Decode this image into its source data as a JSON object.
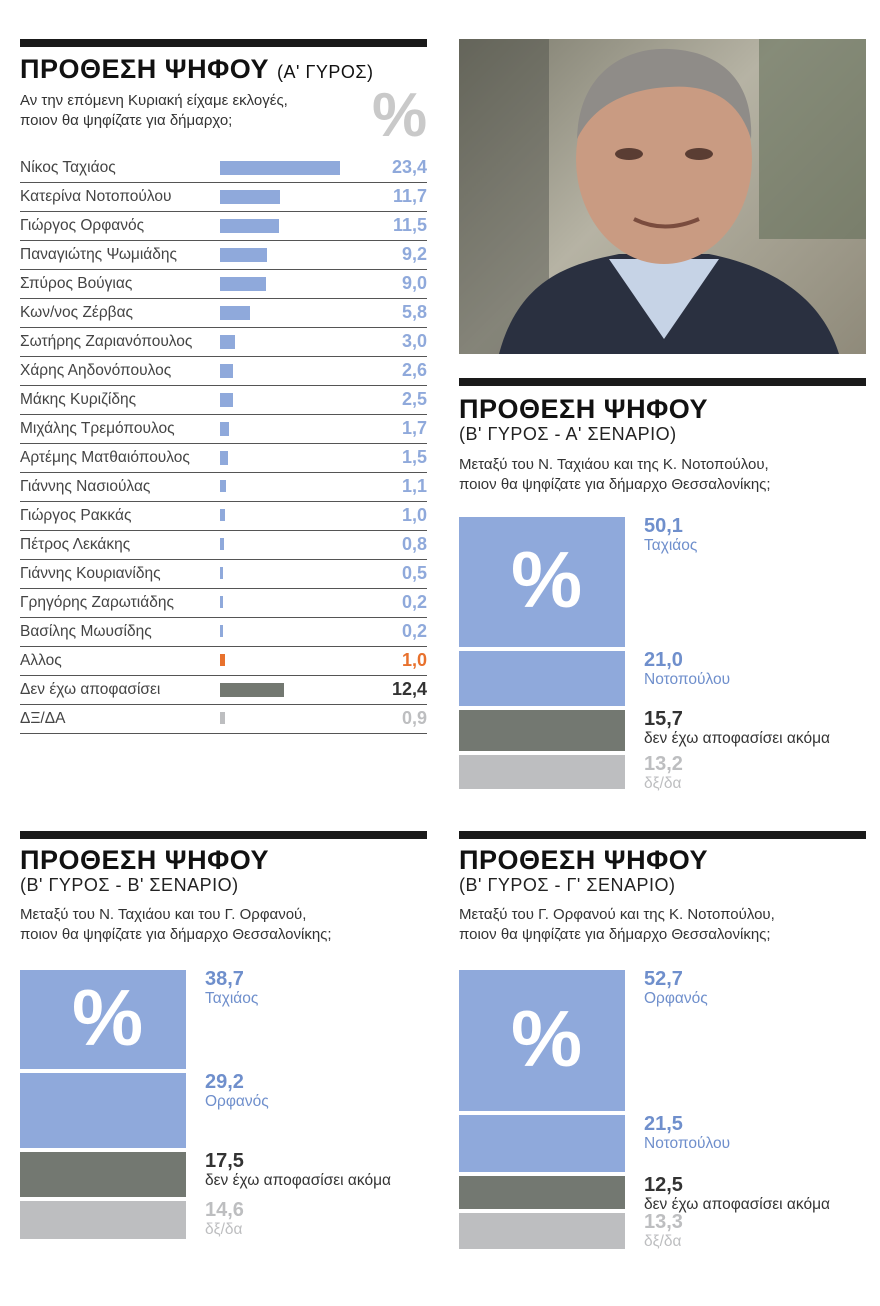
{
  "colors": {
    "blue": "#8fa9db",
    "orange": "#e8712d",
    "darkgray": "#737871",
    "lightgray": "#bdbec0"
  },
  "panel1": {
    "title": "ΠΡΟΘΕΣΗ ΨΗΦΟΥ",
    "subtitle": "(Α' ΓΥΡΟΣ)",
    "question_line1": "Αν την επόμενη Κυριακή είχαμε εκλογές,",
    "question_line2": "ποιον θα ψηφίζατε για δήμαρχο;",
    "percent_symbol": "%"
  },
  "photo": {
    "icon": "portrait-photo"
  },
  "panel2": {
    "title": "ΠΡΟΘΕΣΗ ΨΗΦΟΥ",
    "subtitle": "(Β' ΓΥΡΟΣ - Α' ΣΕΝΑΡΙΟ)",
    "question_line1": "Μεταξύ του Ν. Ταχιάου και της Κ. Νοτοπούλου,",
    "question_line2": "ποιον θα ψηφίζατε για δήμαρχο Θεσσαλονίκης;",
    "percent_symbol": "%"
  },
  "panel3": {
    "title": "ΠΡΟΘΕΣΗ ΨΗΦΟΥ",
    "subtitle": "(Β' ΓΥΡΟΣ - Β' ΣΕΝΑΡΙΟ)",
    "question_line1": "Μεταξύ του Ν. Ταχιάου και του Γ. Ορφανού,",
    "question_line2": "ποιον θα ψηφίζατε για δήμαρχο Θεσσαλονίκης;",
    "percent_symbol": "%"
  },
  "panel4": {
    "title": "ΠΡΟΘΕΣΗ ΨΗΦΟΥ",
    "subtitle": "(Β' ΓΥΡΟΣ - Γ' ΣΕΝΑΡΙΟ)",
    "question_line1": "Μεταξύ του Γ. Ορφανού και της Κ. Νοτοπούλου,",
    "question_line2": "ποιον θα ψηφίζατε για δήμαρχο Θεσσαλονίκης;",
    "percent_symbol": "%"
  },
  "chart_data": [
    {
      "type": "bar",
      "orientation": "horizontal",
      "title": "ΠΡΟΘΕΣΗ ΨΗΦΟΥ (Α' ΓΥΡΟΣ)",
      "unit": "%",
      "categories": [
        "Νίκος Ταχιάος",
        "Κατερίνα Νοτοπούλου",
        "Γιώργος Ορφανός",
        "Παναγιώτης Ψωμιάδης",
        "Σπύρος Βούγιας",
        "Κων/νος Ζέρβας",
        "Σωτήρης Ζαριανόπουλος",
        "Χάρης Αηδονόπουλος",
        "Μάκης Κυριζίδης",
        "Μιχάλης Τρεμόπουλος",
        "Αρτέμης Ματθαιόπουλος",
        "Γιάννης Νασιούλας",
        "Γιώργος Ρακκάς",
        "Πέτρος Λεκάκης",
        "Γιάννης Κουριανίδης",
        "Γρηγόρης Ζαρωτιάδης",
        "Βασίλης Μωυσίδης",
        "Αλλος",
        "Δεν έχω αποφασίσει",
        "ΔΞ/ΔΑ"
      ],
      "values": [
        23.4,
        11.7,
        11.5,
        9.2,
        9.0,
        5.8,
        3.0,
        2.6,
        2.5,
        1.7,
        1.5,
        1.1,
        1.0,
        0.8,
        0.5,
        0.2,
        0.2,
        1.0,
        12.4,
        0.9
      ],
      "labels": [
        "23,4",
        "11,7",
        "11,5",
        "9,2",
        "9,0",
        "5,8",
        "3,0",
        "2,6",
        "2,5",
        "1,7",
        "1,5",
        "1,1",
        "1,0",
        "0,8",
        "0,5",
        "0,2",
        "0,2",
        "1,0",
        "12,4",
        "0,9"
      ],
      "colors": [
        "blue",
        "blue",
        "blue",
        "blue",
        "blue",
        "blue",
        "blue",
        "blue",
        "blue",
        "blue",
        "blue",
        "blue",
        "blue",
        "blue",
        "blue",
        "blue",
        "blue",
        "orange",
        "darkgray",
        "lightgray"
      ],
      "xlim": [
        0,
        23.4
      ]
    },
    {
      "type": "bar",
      "orientation": "stacked-vertical",
      "title": "ΠΡΟΘΕΣΗ ΨΗΦΟΥ (Β' ΓΥΡΟΣ - Α' ΣΕΝΑΡΙΟ)",
      "unit": "%",
      "segments": [
        {
          "value": 50.1,
          "label": "50,1",
          "name": "Ταχιάος",
          "color": "blue"
        },
        {
          "value": 21.0,
          "label": "21,0",
          "name": "Νοτοπούλου",
          "color": "blue"
        },
        {
          "value": 15.7,
          "label": "15,7",
          "name": "δεν έχω αποφασίσει ακόμα",
          "color": "darkgray"
        },
        {
          "value": 13.2,
          "label": "13,2",
          "name": "δξ/δα",
          "color": "lightgray"
        }
      ]
    },
    {
      "type": "bar",
      "orientation": "stacked-vertical",
      "title": "ΠΡΟΘΕΣΗ ΨΗΦΟΥ (Β' ΓΥΡΟΣ - Β' ΣΕΝΑΡΙΟ)",
      "unit": "%",
      "segments": [
        {
          "value": 38.7,
          "label": "38,7",
          "name": "Ταχιάος",
          "color": "blue"
        },
        {
          "value": 29.2,
          "label": "29,2",
          "name": "Ορφανός",
          "color": "blue"
        },
        {
          "value": 17.5,
          "label": "17,5",
          "name": "δεν έχω αποφασίσει ακόμα",
          "color": "darkgray"
        },
        {
          "value": 14.6,
          "label": "14,6",
          "name": "δξ/δα",
          "color": "lightgray"
        }
      ]
    },
    {
      "type": "bar",
      "orientation": "stacked-vertical",
      "title": "ΠΡΟΘΕΣΗ ΨΗΦΟΥ (Β' ΓΥΡΟΣ - Γ' ΣΕΝΑΡΙΟ)",
      "unit": "%",
      "segments": [
        {
          "value": 52.7,
          "label": "52,7",
          "name": "Ορφανός",
          "color": "blue"
        },
        {
          "value": 21.5,
          "label": "21,5",
          "name": "Νοτοπούλου",
          "color": "blue"
        },
        {
          "value": 12.5,
          "label": "12,5",
          "name": "δεν έχω αποφασίσει ακόμα",
          "color": "darkgray"
        },
        {
          "value": 13.3,
          "label": "13,3",
          "name": "δξ/δα",
          "color": "lightgray"
        }
      ]
    }
  ]
}
